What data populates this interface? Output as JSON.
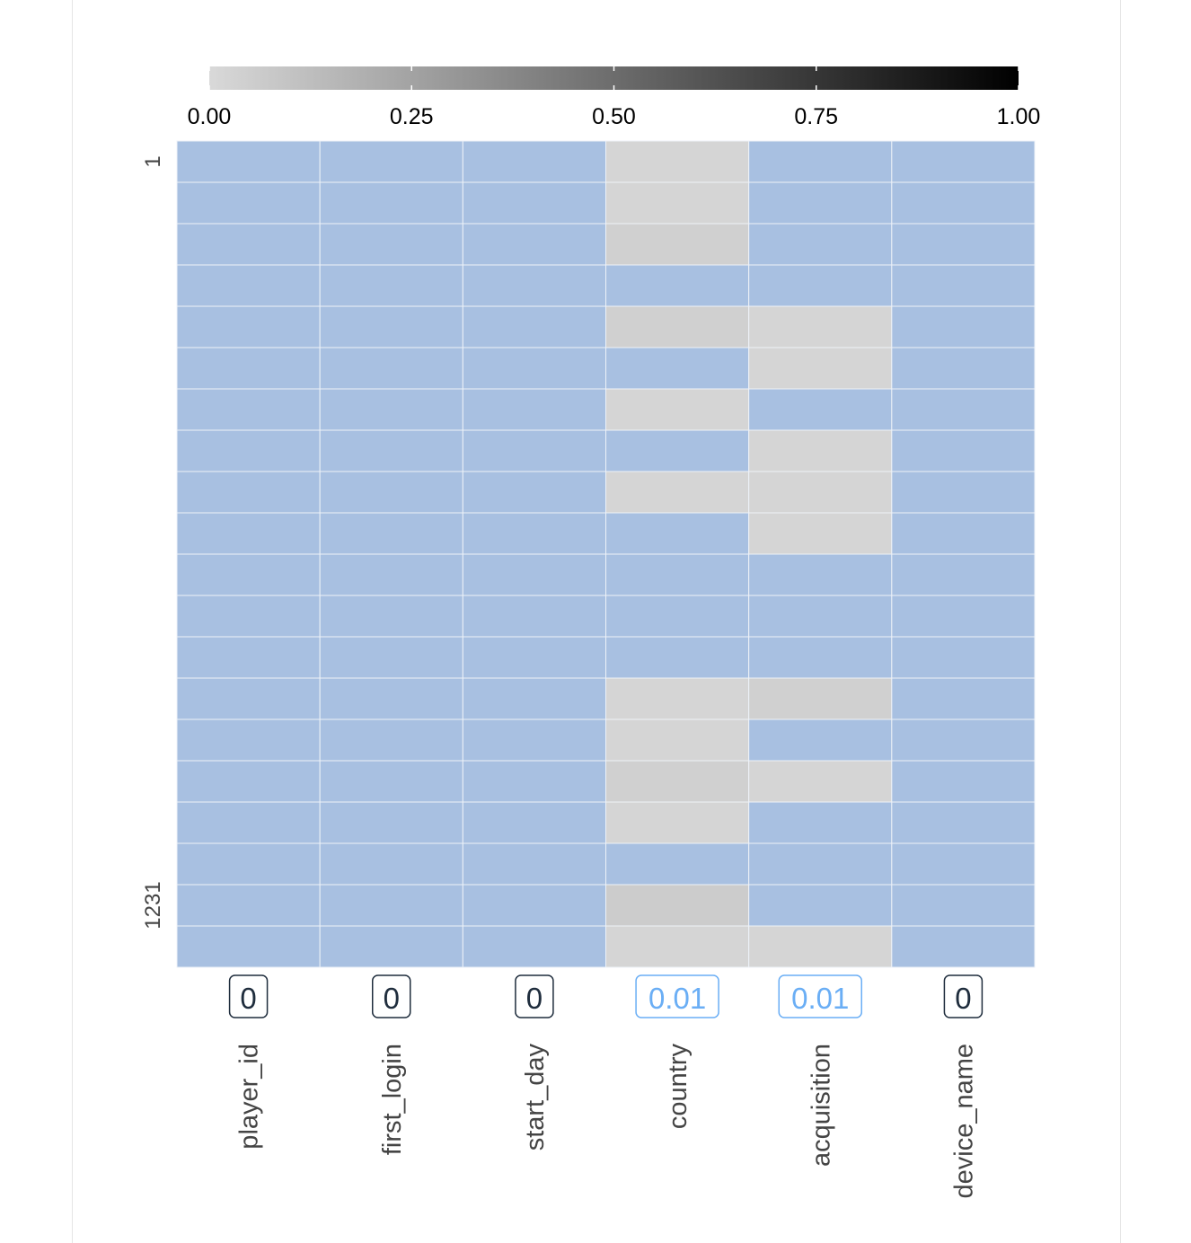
{
  "chart_data": {
    "type": "heatmap",
    "title": "",
    "colorbar": {
      "ticks": [
        "0.00",
        "0.25",
        "0.50",
        "0.75",
        "1.00"
      ],
      "range": [
        0,
        1
      ],
      "low_color": "#d9d9d9",
      "high_color": "#000000",
      "placement": "top"
    },
    "present_color": "#a8c0e1",
    "row_labels": {
      "first": "1",
      "last": "1231"
    },
    "columns": [
      "player_id",
      "first_login",
      "start_day",
      "country",
      "acquisition",
      "device_name"
    ],
    "column_missing_fraction": [
      "0",
      "0",
      "0",
      "0.01",
      "0.01",
      "0"
    ],
    "badge_colors": {
      "zero": "#1f2d3d",
      "nonzero": "#6aaef5"
    },
    "row_blocks": 20,
    "missing_fraction_by_column": [
      [
        0,
        0,
        0,
        0,
        0,
        0,
        0,
        0,
        0,
        0,
        0,
        0,
        0,
        0,
        0,
        0,
        0,
        0,
        0,
        0
      ],
      [
        0,
        0,
        0,
        0,
        0,
        0,
        0,
        0,
        0,
        0,
        0,
        0,
        0,
        0,
        0,
        0,
        0,
        0,
        0,
        0
      ],
      [
        0,
        0,
        0,
        0,
        0,
        0,
        0,
        0,
        0,
        0,
        0,
        0,
        0,
        0,
        0,
        0,
        0,
        0,
        0,
        0
      ],
      [
        0.02,
        0.02,
        0.04,
        0,
        0.04,
        0,
        0.02,
        0,
        0.02,
        0,
        0,
        0,
        0,
        0.02,
        0.02,
        0.04,
        0.02,
        0,
        0.06,
        0.02
      ],
      [
        0,
        0,
        0,
        0,
        0.02,
        0.02,
        0,
        0.02,
        0.02,
        0.02,
        0,
        0,
        0,
        0.04,
        0,
        0.02,
        0,
        0,
        0,
        0.02
      ],
      [
        0,
        0,
        0,
        0,
        0,
        0,
        0,
        0,
        0,
        0,
        0,
        0,
        0,
        0,
        0,
        0,
        0,
        0,
        0,
        0
      ]
    ]
  }
}
